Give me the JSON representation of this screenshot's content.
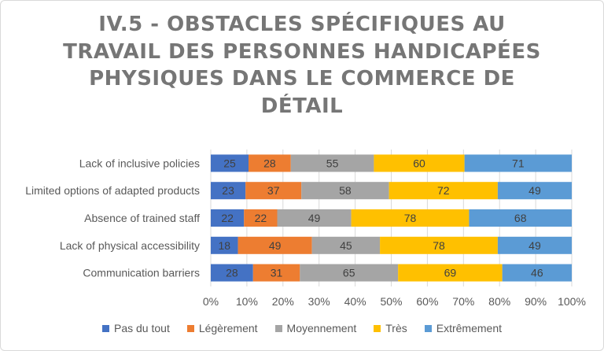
{
  "chart_data": {
    "type": "bar",
    "orientation": "horizontal",
    "stacking": "percent",
    "title": "IV.5 - OBSTACLES SPÉCIFIQUES AU TRAVAIL DES PERSONNES HANDICAPÉES PHYSIQUES DANS LE COMMERCE DE DÉTAIL",
    "title_lines": [
      "IV.5 - OBSTACLES SPÉCIFIQUES AU",
      "TRAVAIL DES PERSONNES HANDICAPÉES",
      "PHYSIQUES DANS LE COMMERCE DE",
      "DÉTAIL"
    ],
    "categories": [
      "Lack of inclusive policies",
      "Limited options of adapted products",
      "Absence of trained staff",
      "Lack of physical accessibility",
      "Communication barriers"
    ],
    "series": [
      {
        "name": "Pas du tout",
        "color": "#4472c4",
        "values": [
          25,
          23,
          22,
          18,
          28
        ]
      },
      {
        "name": "Légèrement",
        "color": "#ed7d31",
        "values": [
          28,
          37,
          22,
          49,
          31
        ]
      },
      {
        "name": "Moyennement",
        "color": "#a5a5a5",
        "values": [
          55,
          58,
          49,
          45,
          65
        ]
      },
      {
        "name": "Très",
        "color": "#ffc000",
        "values": [
          60,
          72,
          78,
          78,
          69
        ]
      },
      {
        "name": "Extrêmement",
        "color": "#5b9bd5",
        "values": [
          71,
          49,
          68,
          49,
          46
        ]
      }
    ],
    "x_ticks": [
      "0%",
      "10%",
      "20%",
      "30%",
      "40%",
      "50%",
      "60%",
      "70%",
      "80%",
      "90%",
      "100%"
    ],
    "xlim": [
      0,
      100
    ],
    "grid": true,
    "legend_position": "bottom"
  }
}
